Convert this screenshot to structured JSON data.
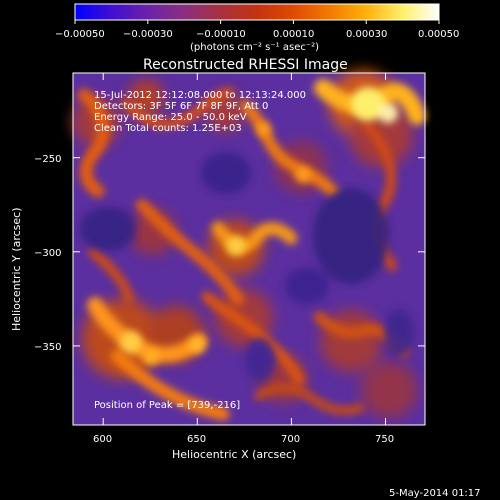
{
  "colorbar": {
    "colors": [
      "#0000ff",
      "#3f0fd0",
      "#6a22a8",
      "#8a2f7e",
      "#a9303f",
      "#c43310",
      "#df4a00",
      "#f37a00",
      "#ffb10a",
      "#fff06a",
      "#ffffff"
    ],
    "tick_labels": [
      "−0.00050",
      "−0.00030",
      "−0.00010",
      "0.00010",
      "0.00030",
      "0.00050"
    ],
    "units_label": "(photons cm⁻² s⁻¹ asec⁻²)"
  },
  "image": {
    "title": "Reconstructed RHESSI Image",
    "info_lines": [
      "15-Jul-2012 12:12:08.000 to 12:13:24.000",
      "Detectors: 3F 5F 6F 7F 8F 9F, Att 0",
      "Energy Range: 25.0 - 50.0 keV",
      "Clean    Total counts: 1.25E+03"
    ],
    "peak_label": "Position of Peak = [739,-216]",
    "colors": {
      "background": "#5b2f9f",
      "low": "#2f1f7a",
      "mid": "#a73a39",
      "high": "#f18a12",
      "peak": "#fff36f"
    }
  },
  "axes": {
    "x": {
      "label": "Heliocentric X (arcsec)",
      "ticks": [
        "600",
        "650",
        "700",
        "750"
      ]
    },
    "y": {
      "label": "Heliocentric Y (arcsec)",
      "ticks": [
        "−250",
        "−300",
        "−350"
      ]
    }
  },
  "footer": {
    "date": "5-May-2014 01:17"
  }
}
